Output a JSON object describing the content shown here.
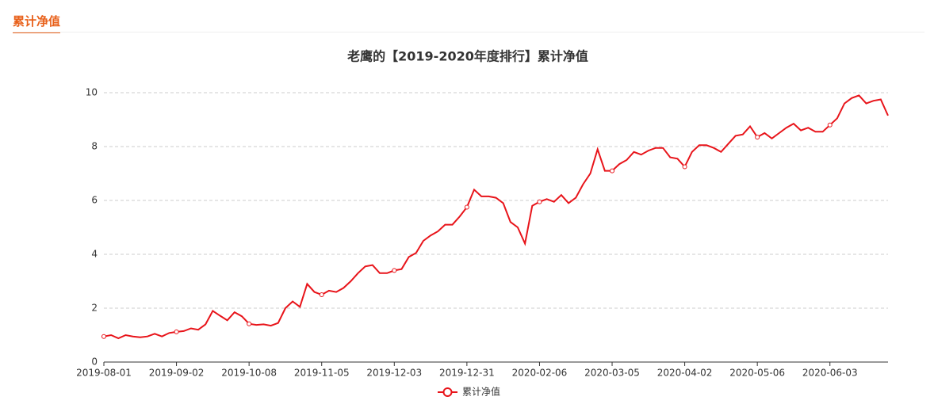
{
  "header": {
    "title": "累计净值"
  },
  "chart_data": {
    "type": "line",
    "title": "老鹰的【2019-2020年度排行】累计净值",
    "categories": [
      "2019-08-01",
      null,
      null,
      null,
      null,
      null,
      null,
      null,
      null,
      null,
      "2019-09-02",
      null,
      null,
      null,
      null,
      null,
      null,
      null,
      null,
      null,
      "2019-10-08",
      null,
      null,
      null,
      null,
      null,
      null,
      null,
      null,
      null,
      "2019-11-05",
      null,
      null,
      null,
      null,
      null,
      null,
      null,
      null,
      null,
      "2019-12-03",
      null,
      null,
      null,
      null,
      null,
      null,
      null,
      null,
      null,
      "2019-12-31",
      null,
      null,
      null,
      null,
      null,
      null,
      null,
      null,
      null,
      "2020-02-06",
      null,
      null,
      null,
      null,
      null,
      null,
      null,
      null,
      null,
      "2020-03-05",
      null,
      null,
      null,
      null,
      null,
      null,
      null,
      null,
      null,
      "2020-04-02",
      null,
      null,
      null,
      null,
      null,
      null,
      null,
      null,
      null,
      "2020-05-06",
      null,
      null,
      null,
      null,
      null,
      null,
      null,
      null,
      null,
      "2020-06-03",
      null,
      null,
      null,
      null,
      null,
      null,
      null,
      null
    ],
    "series": [
      {
        "name": "累计净值",
        "color": "#e8141a",
        "values": [
          0.95,
          1.0,
          0.88,
          1.0,
          0.95,
          0.92,
          0.95,
          1.05,
          0.95,
          1.08,
          1.12,
          1.15,
          1.25,
          1.2,
          1.4,
          1.9,
          1.72,
          1.55,
          1.85,
          1.7,
          1.42,
          1.38,
          1.4,
          1.35,
          1.45,
          2.0,
          2.25,
          2.05,
          2.9,
          2.6,
          2.5,
          2.65,
          2.6,
          2.75,
          3.0,
          3.3,
          3.55,
          3.6,
          3.3,
          3.3,
          3.4,
          3.45,
          3.9,
          4.05,
          4.5,
          4.7,
          4.85,
          5.1,
          5.1,
          5.4,
          5.75,
          6.4,
          6.15,
          6.15,
          6.1,
          5.9,
          5.2,
          5.0,
          4.4,
          5.8,
          5.95,
          6.05,
          5.95,
          6.2,
          5.9,
          6.1,
          6.6,
          7.0,
          7.9,
          7.1,
          7.1,
          7.35,
          7.5,
          7.8,
          7.7,
          7.85,
          7.95,
          7.95,
          7.6,
          7.55,
          7.25,
          7.8,
          8.05,
          8.05,
          7.95,
          7.8,
          8.1,
          8.4,
          8.45,
          8.75,
          8.35,
          8.5,
          8.3,
          8.5,
          8.7,
          8.85,
          8.6,
          8.7,
          8.55,
          8.55,
          8.8,
          9.05,
          9.6,
          9.8,
          9.9,
          9.6,
          9.7,
          9.75,
          9.15
        ]
      }
    ],
    "ylim": [
      0,
      10
    ],
    "yticks": [
      0,
      2,
      4,
      6,
      8,
      10
    ],
    "grid": true,
    "legend": "bottom"
  }
}
